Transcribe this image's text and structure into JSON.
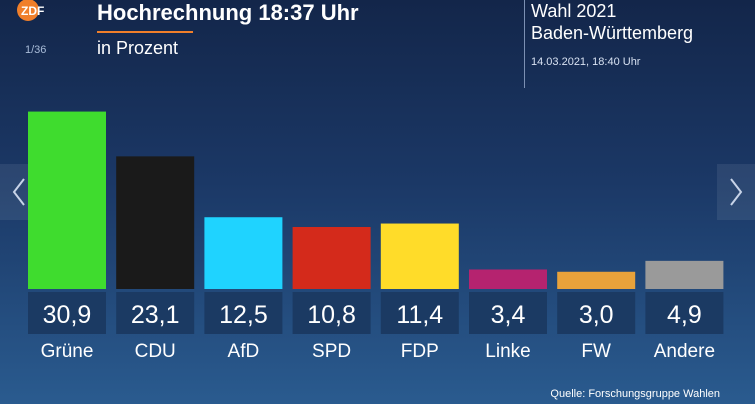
{
  "header": {
    "logo_text": "ZDF",
    "page_counter": "1/36",
    "title": "Hochrechnung 18:37 Uhr",
    "subtitle": "in Prozent",
    "election_title": "Wahl 2021",
    "region": "Baden-Württemberg",
    "timestamp": "14.03.2021, 18:40 Uhr"
  },
  "navigation": {
    "prev_icon": "chevron-left-icon",
    "next_icon": "chevron-right-icon"
  },
  "footer": {
    "source": "Quelle: Forschungsgruppe Wahlen"
  },
  "chart_data": {
    "type": "bar",
    "categories": [
      "Grüne",
      "CDU",
      "AfD",
      "SPD",
      "FDP",
      "Linke",
      "FW",
      "Andere"
    ],
    "values": [
      30.9,
      23.1,
      12.5,
      10.8,
      11.4,
      3.4,
      3.0,
      4.9
    ],
    "value_labels": [
      "30,9",
      "23,1",
      "12,5",
      "10,8",
      "11,4",
      "3,4",
      "3,0",
      "4,9"
    ],
    "colors": [
      "#3fdc2e",
      "#1a1a1a",
      "#1fd3ff",
      "#d42a1b",
      "#ffdc29",
      "#b5236f",
      "#e8a23b",
      "#9a9a9a"
    ],
    "ylim": [
      0,
      31
    ],
    "grid": false
  }
}
